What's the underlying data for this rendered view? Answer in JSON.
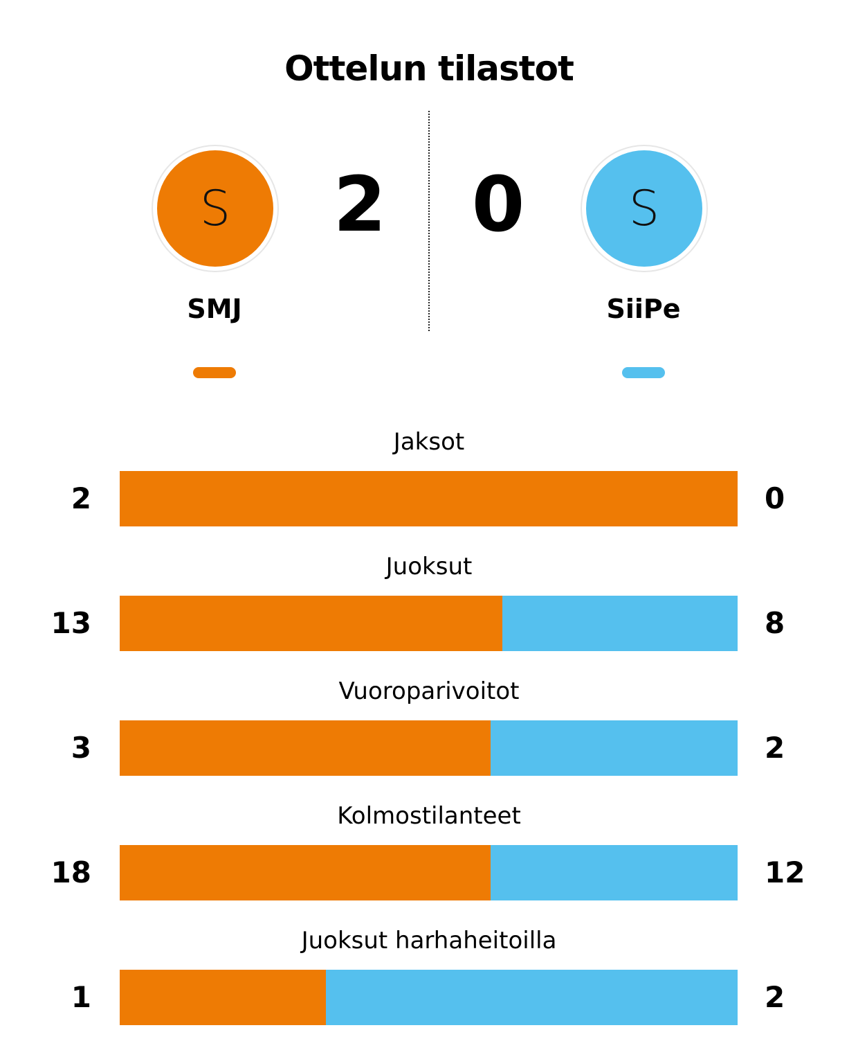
{
  "title": "Ottelun tilastot",
  "colors": {
    "home": "#EE7B04",
    "away": "#55C0EE"
  },
  "home": {
    "name": "SMJ",
    "logo_letter": "S",
    "score": "2"
  },
  "away": {
    "name": "SiiPe",
    "logo_letter": "S",
    "score": "0"
  },
  "chart_data": {
    "type": "bar",
    "stacked": "percent",
    "categories": [
      "Jaksot",
      "Juoksut",
      "Vuoroparivoitot",
      "Kolmostilanteet",
      "Juoksut harhaheitoilla"
    ],
    "series": [
      {
        "name": "SMJ",
        "values": [
          2,
          13,
          3,
          18,
          1
        ]
      },
      {
        "name": "SiiPe",
        "values": [
          0,
          8,
          2,
          12,
          2
        ]
      }
    ]
  }
}
